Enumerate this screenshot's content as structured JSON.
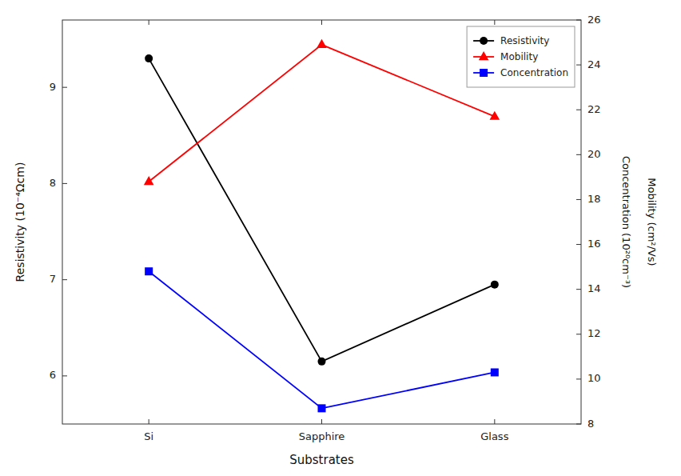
{
  "chart_data": {
    "type": "line",
    "categories": [
      "Si",
      "Sapphire",
      "Glass"
    ],
    "xlabel": "Substrates",
    "ylabel": "Resistivity (10⁻⁴Ωcm)",
    "y2labels": [
      "Concentration (10²⁰cm⁻³)",
      "Mobility (cm²/Vs)"
    ],
    "ylim": [
      5.5,
      9.7
    ],
    "yticks": [
      6,
      7,
      8,
      9
    ],
    "y2lim": [
      8,
      26
    ],
    "y2ticks": [
      8,
      10,
      12,
      14,
      16,
      18,
      20,
      22,
      24,
      26
    ],
    "grid": false,
    "legend": "upper right",
    "series": [
      {
        "name": "Resistivity",
        "color": "#000000",
        "marker": "circle",
        "values": [
          9.3,
          6.15,
          6.95
        ]
      },
      {
        "name": "Mobility",
        "color": "#ff0000",
        "marker": "triangle",
        "axis": "y2",
        "values": [
          18.8,
          24.9,
          21.7
        ]
      },
      {
        "name": "Concentration",
        "color": "#0000ff",
        "marker": "square",
        "axis": "y2",
        "values": [
          14.8,
          8.7,
          10.3
        ]
      }
    ]
  }
}
